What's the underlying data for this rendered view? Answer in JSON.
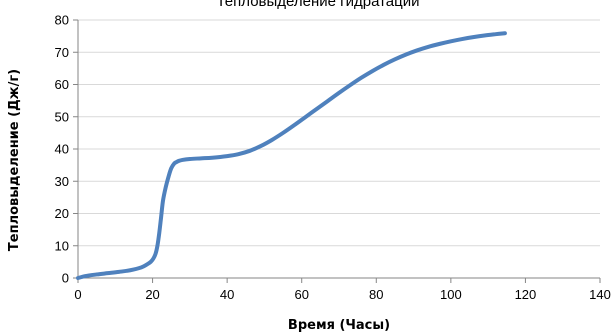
{
  "chart_data": {
    "type": "line",
    "title": "Тепловыделение гидратации",
    "xlabel": "Время (Часы)",
    "ylabel": "Тепловыделение (Дж/г)",
    "xlim": [
      0,
      140
    ],
    "ylim": [
      0,
      80
    ],
    "xticks": [
      "0",
      "20",
      "40",
      "60",
      "80",
      "100",
      "120",
      "140"
    ],
    "yticks": [
      "0",
      "10",
      "20",
      "30",
      "40",
      "50",
      "60",
      "70",
      "80"
    ],
    "grid": "horizontal",
    "legend": "none",
    "line_color": "#4f81bd",
    "gridline_color": "#d9d9d9",
    "axis_color": "#868686",
    "series": [
      {
        "x": [
          0,
          2,
          5,
          8,
          11,
          14,
          17,
          18.5,
          19.5,
          20.2,
          20.8,
          21.3,
          21.8,
          22.3,
          22.8,
          23.5,
          24.3,
          25.0,
          25.8,
          26.5,
          27.0,
          28,
          30,
          33,
          36,
          40,
          43,
          46,
          49,
          52,
          55,
          58,
          61,
          64,
          67,
          70,
          73,
          76,
          79,
          82,
          85,
          88,
          91,
          94,
          97,
          100,
          103,
          106,
          109,
          112,
          114.5
        ],
        "y": [
          0,
          0.6,
          1.1,
          1.5,
          1.9,
          2.4,
          3.3,
          4.2,
          5.0,
          6.0,
          7.5,
          10.0,
          14.0,
          19.0,
          24.0,
          28.0,
          31.5,
          34.0,
          35.5,
          36.0,
          36.3,
          36.6,
          36.9,
          37.1,
          37.3,
          37.8,
          38.4,
          39.4,
          40.9,
          42.8,
          45.0,
          47.4,
          49.9,
          52.4,
          54.9,
          57.4,
          59.8,
          62.1,
          64.2,
          66.1,
          67.8,
          69.3,
          70.6,
          71.7,
          72.6,
          73.4,
          74.1,
          74.7,
          75.2,
          75.6,
          75.9
        ]
      }
    ]
  }
}
